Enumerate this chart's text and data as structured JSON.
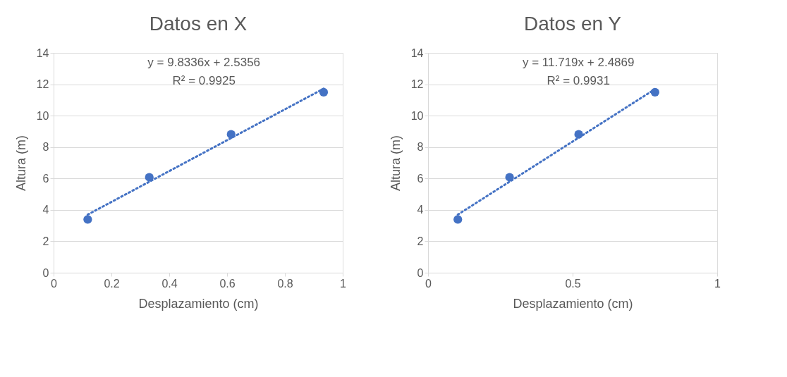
{
  "chart_data": [
    {
      "type": "scatter",
      "title": "Datos en X",
      "xlabel": "Desplazamiento (cm)",
      "ylabel": "Altura (m)",
      "xlim": [
        0,
        1
      ],
      "xticks": [
        0,
        0.2,
        0.4,
        0.6,
        0.8,
        1
      ],
      "ylim": [
        0,
        14
      ],
      "yticks": [
        0,
        2,
        4,
        6,
        8,
        10,
        12,
        14
      ],
      "grid": "y",
      "series": [
        {
          "marker": "circle",
          "color": "#4472c4",
          "x": [
            0.118,
            0.331,
            0.614,
            0.934
          ],
          "values": [
            3.39,
            6.08,
            8.81,
            11.49
          ]
        },
        {
          "type": "line",
          "line_style": "dotted",
          "color": "#4472c4",
          "x": [
            0.118,
            0.934
          ],
          "values": [
            3.7,
            11.72
          ]
        }
      ],
      "annotations": [
        "y = 9.8336x + 2.5356",
        "R² = 0.9925"
      ]
    },
    {
      "type": "scatter",
      "title": "Datos en Y",
      "xlabel": "Desplazamiento (cm)",
      "ylabel": "Altura (m)",
      "xlim": [
        0,
        1
      ],
      "xticks": [
        0,
        0.5,
        1
      ],
      "ylim": [
        0,
        14
      ],
      "yticks": [
        0,
        2,
        4,
        6,
        8,
        10,
        12,
        14
      ],
      "grid": "y",
      "series": [
        {
          "marker": "circle",
          "color": "#4472c4",
          "x": [
            0.103,
            0.282,
            0.521,
            0.785
          ],
          "values": [
            3.39,
            6.08,
            8.81,
            11.49
          ]
        },
        {
          "type": "line",
          "line_style": "dotted",
          "color": "#4472c4",
          "x": [
            0.103,
            0.785
          ],
          "values": [
            3.7,
            11.69
          ]
        }
      ],
      "annotations": [
        "y = 11.719x + 2.4869",
        "R² = 0.9931"
      ]
    }
  ]
}
